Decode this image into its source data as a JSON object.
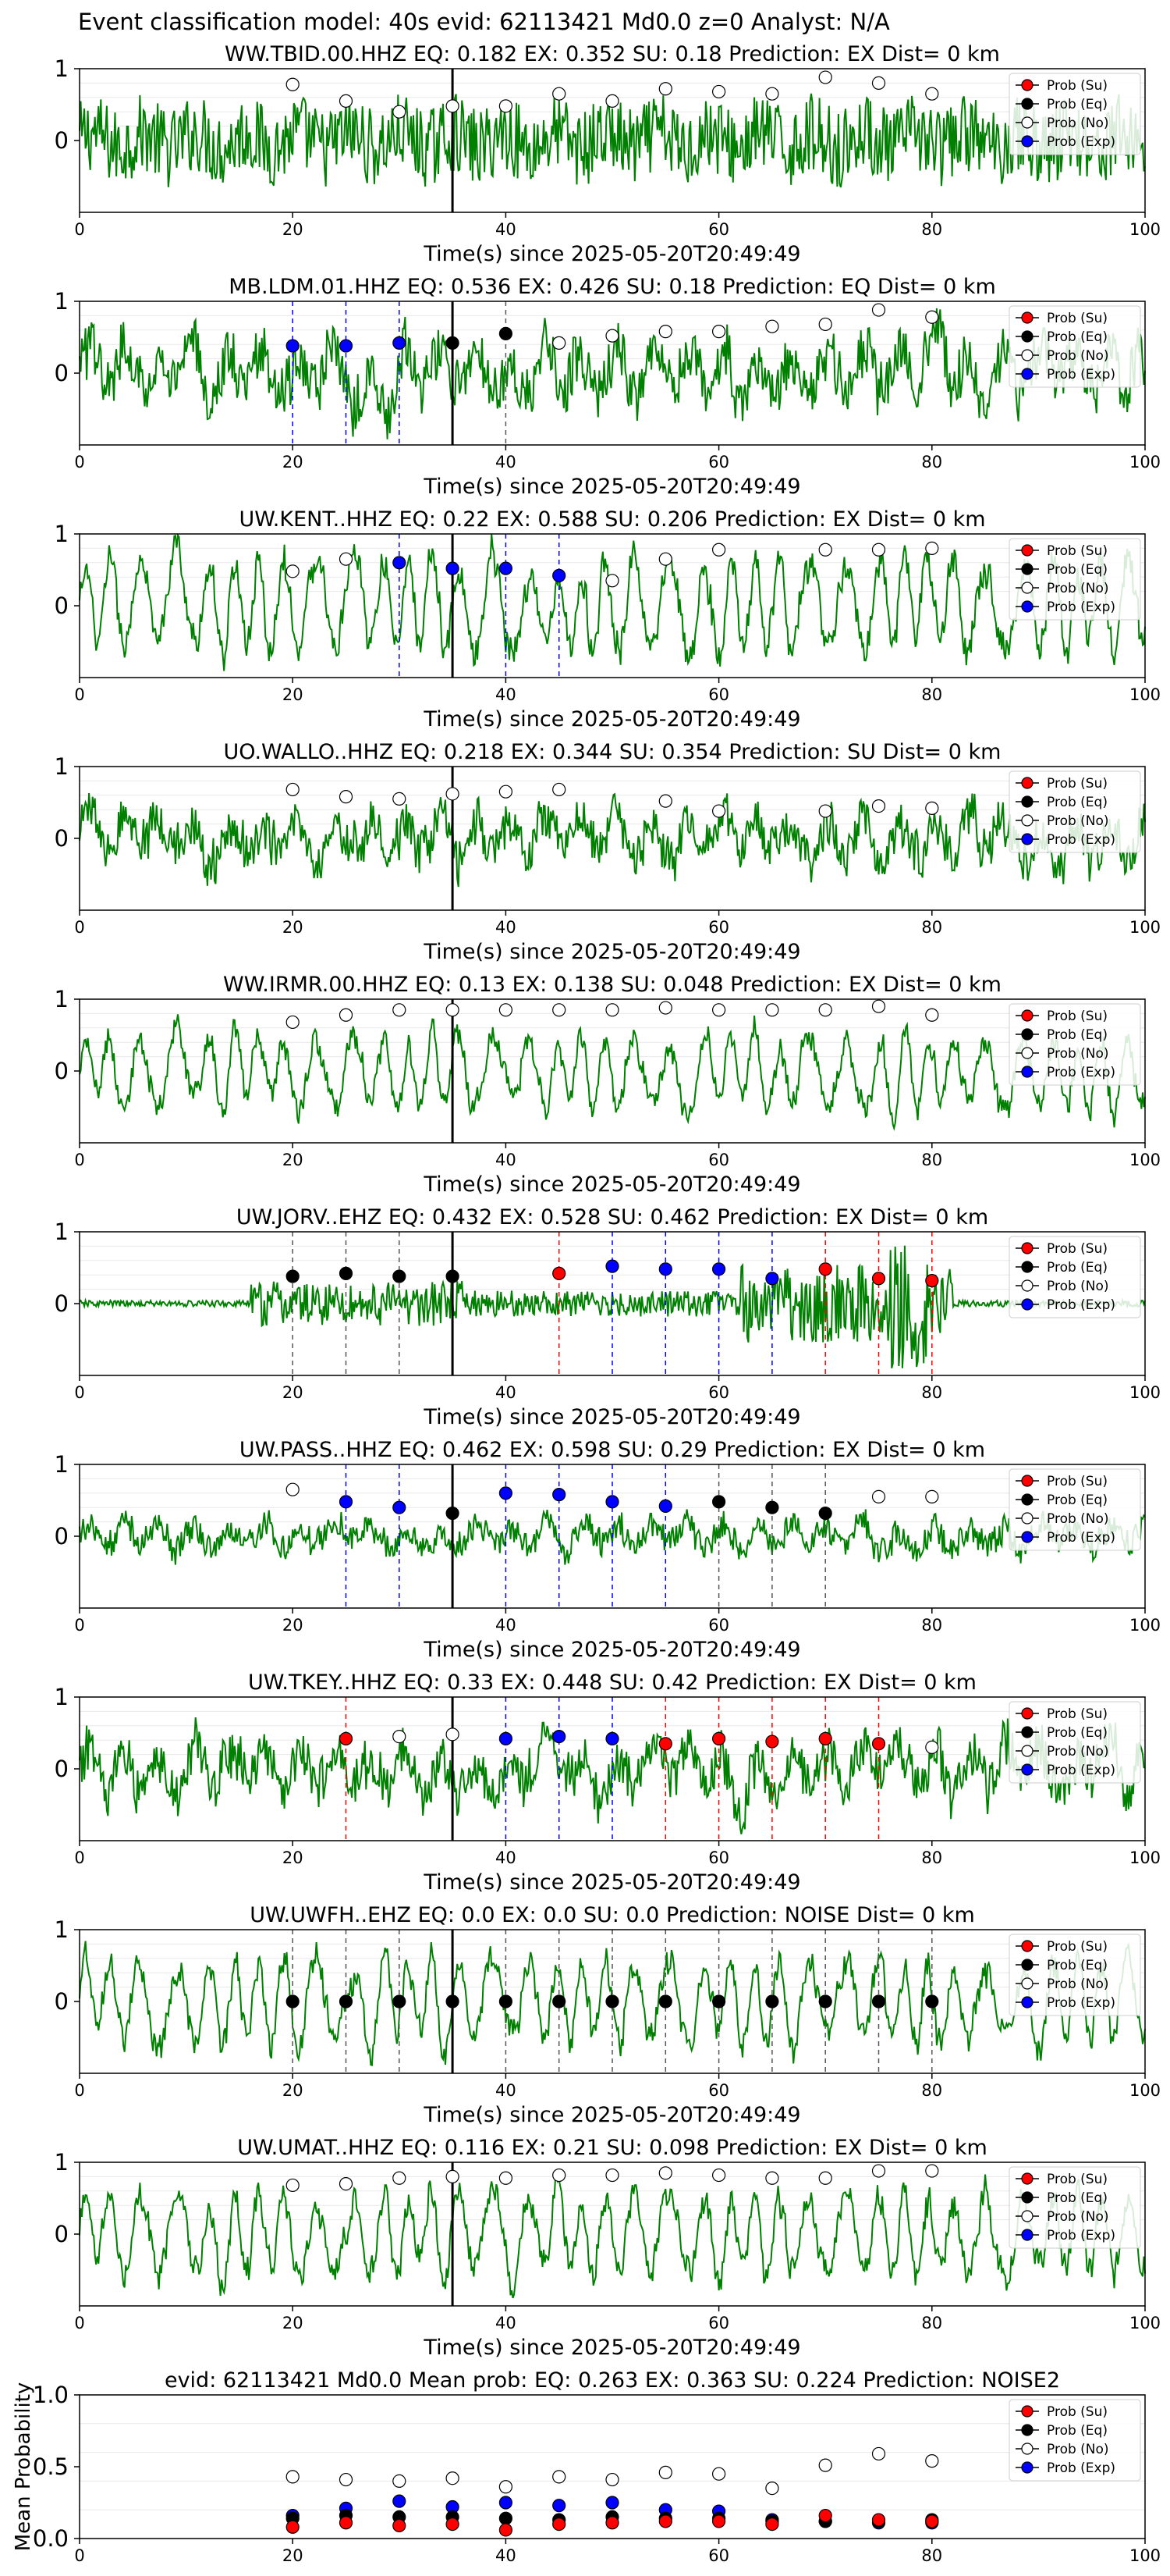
{
  "figure_title": "Event classification model: 40s evid: 62113421 Md0.0 z=0 Analyst: N/A",
  "legend": [
    "Prob (Su)",
    "Prob (Eq)",
    "Prob (No)",
    "Prob (Exp)"
  ],
  "colors": {
    "trace": "#008000",
    "su": "#ff0000",
    "eq": "#000000",
    "no": "#ffffff",
    "exp": "#0000ff",
    "pick": "#000000"
  },
  "chart_data": [
    {
      "type": "line",
      "title": "WW.TBID.00.HHZ   EQ: 0.182  EX: 0.352  SU: 0.18   Prediction: EX    Dist= 0 km",
      "xlabel": "Time(s) since 2025-05-20T20:49:49",
      "xlim": [
        0,
        100
      ],
      "ylim": [
        -1,
        1
      ],
      "xticks": [
        "0",
        "20",
        "40",
        "60",
        "80",
        "100"
      ],
      "yticks": [
        "1",
        "0"
      ],
      "pick_time": 35,
      "trace": {
        "amp": 0.55,
        "style": "noise"
      },
      "points": [
        {
          "t": 20,
          "p": 0.78,
          "c": "no"
        },
        {
          "t": 25,
          "p": 0.55,
          "c": "no"
        },
        {
          "t": 30,
          "p": 0.4,
          "c": "no"
        },
        {
          "t": 35,
          "p": 0.48,
          "c": "no"
        },
        {
          "t": 40,
          "p": 0.48,
          "c": "no"
        },
        {
          "t": 45,
          "p": 0.65,
          "c": "no"
        },
        {
          "t": 50,
          "p": 0.55,
          "c": "no"
        },
        {
          "t": 55,
          "p": 0.72,
          "c": "no"
        },
        {
          "t": 60,
          "p": 0.68,
          "c": "no"
        },
        {
          "t": 65,
          "p": 0.65,
          "c": "no"
        },
        {
          "t": 70,
          "p": 0.88,
          "c": "no"
        },
        {
          "t": 75,
          "p": 0.8,
          "c": "no"
        },
        {
          "t": 80,
          "p": 0.65,
          "c": "no"
        }
      ]
    },
    {
      "type": "line",
      "title": "MB.LDM.01.HHZ   EQ: 0.536  EX: 0.426  SU: 0.18   Prediction: EQ    Dist= 0 km",
      "xlabel": "Time(s) since 2025-05-20T20:49:49",
      "xlim": [
        0,
        100
      ],
      "ylim": [
        -1,
        1
      ],
      "xticks": [
        "0",
        "20",
        "40",
        "60",
        "80",
        "100"
      ],
      "yticks": [
        "1",
        "0"
      ],
      "pick_time": 35,
      "trace": {
        "amp": 0.6,
        "style": "mixed"
      },
      "points": [
        {
          "t": 20,
          "p": 0.38,
          "c": "exp"
        },
        {
          "t": 25,
          "p": 0.38,
          "c": "exp"
        },
        {
          "t": 30,
          "p": 0.42,
          "c": "exp"
        },
        {
          "t": 35,
          "p": 0.42,
          "c": "eq"
        },
        {
          "t": 40,
          "p": 0.55,
          "c": "eq"
        },
        {
          "t": 45,
          "p": 0.42,
          "c": "no"
        },
        {
          "t": 50,
          "p": 0.52,
          "c": "no"
        },
        {
          "t": 55,
          "p": 0.58,
          "c": "no"
        },
        {
          "t": 60,
          "p": 0.58,
          "c": "no"
        },
        {
          "t": 65,
          "p": 0.65,
          "c": "no"
        },
        {
          "t": 70,
          "p": 0.68,
          "c": "no"
        },
        {
          "t": 75,
          "p": 0.88,
          "c": "no"
        },
        {
          "t": 80,
          "p": 0.78,
          "c": "no"
        }
      ]
    },
    {
      "type": "line",
      "title": "UW.KENT..HHZ   EQ: 0.22  EX: 0.588  SU: 0.206   Prediction: EX    Dist= 0 km",
      "xlabel": "Time(s) since 2025-05-20T20:49:49",
      "xlim": [
        0,
        100
      ],
      "ylim": [
        -1,
        1
      ],
      "xticks": [
        "0",
        "20",
        "40",
        "60",
        "80",
        "100"
      ],
      "yticks": [
        "1",
        "0"
      ],
      "pick_time": 35,
      "trace": {
        "amp": 0.75,
        "style": "oscillation"
      },
      "points": [
        {
          "t": 20,
          "p": 0.48,
          "c": "no"
        },
        {
          "t": 25,
          "p": 0.65,
          "c": "no"
        },
        {
          "t": 30,
          "p": 0.6,
          "c": "exp"
        },
        {
          "t": 35,
          "p": 0.52,
          "c": "exp"
        },
        {
          "t": 40,
          "p": 0.52,
          "c": "exp"
        },
        {
          "t": 45,
          "p": 0.42,
          "c": "exp"
        },
        {
          "t": 50,
          "p": 0.35,
          "c": "no"
        },
        {
          "t": 55,
          "p": 0.65,
          "c": "no"
        },
        {
          "t": 60,
          "p": 0.78,
          "c": "no"
        },
        {
          "t": 70,
          "p": 0.78,
          "c": "no"
        },
        {
          "t": 75,
          "p": 0.78,
          "c": "no"
        },
        {
          "t": 80,
          "p": 0.8,
          "c": "no"
        }
      ]
    },
    {
      "type": "line",
      "title": "UO.WALLO..HHZ   EQ: 0.218  EX: 0.344  SU: 0.354   Prediction: SU    Dist= 0 km",
      "xlabel": "Time(s) since 2025-05-20T20:49:49",
      "xlim": [
        0,
        100
      ],
      "ylim": [
        -1,
        1
      ],
      "xticks": [
        "0",
        "20",
        "40",
        "60",
        "80",
        "100"
      ],
      "yticks": [
        "1",
        "0"
      ],
      "pick_time": 35,
      "trace": {
        "amp": 0.5,
        "style": "mixed"
      },
      "points": [
        {
          "t": 20,
          "p": 0.68,
          "c": "no"
        },
        {
          "t": 25,
          "p": 0.58,
          "c": "no"
        },
        {
          "t": 30,
          "p": 0.55,
          "c": "no"
        },
        {
          "t": 35,
          "p": 0.62,
          "c": "no"
        },
        {
          "t": 40,
          "p": 0.65,
          "c": "no"
        },
        {
          "t": 45,
          "p": 0.68,
          "c": "no"
        },
        {
          "t": 55,
          "p": 0.52,
          "c": "no"
        },
        {
          "t": 60,
          "p": 0.38,
          "c": "no"
        },
        {
          "t": 70,
          "p": 0.38,
          "c": "no"
        },
        {
          "t": 75,
          "p": 0.45,
          "c": "no"
        },
        {
          "t": 80,
          "p": 0.42,
          "c": "no"
        }
      ]
    },
    {
      "type": "line",
      "title": "WW.IRMR.00.HHZ   EQ: 0.13  EX: 0.138  SU: 0.048   Prediction: EX    Dist= 0 km",
      "xlabel": "Time(s) since 2025-05-20T20:49:49",
      "xlim": [
        0,
        100
      ],
      "ylim": [
        -1,
        1
      ],
      "xticks": [
        "0",
        "20",
        "40",
        "60",
        "80",
        "100"
      ],
      "yticks": [
        "1",
        "0"
      ],
      "pick_time": 35,
      "trace": {
        "amp": 0.6,
        "style": "oscillation"
      },
      "points": [
        {
          "t": 20,
          "p": 0.68,
          "c": "no"
        },
        {
          "t": 25,
          "p": 0.78,
          "c": "no"
        },
        {
          "t": 30,
          "p": 0.85,
          "c": "no"
        },
        {
          "t": 35,
          "p": 0.85,
          "c": "no"
        },
        {
          "t": 40,
          "p": 0.85,
          "c": "no"
        },
        {
          "t": 45,
          "p": 0.85,
          "c": "no"
        },
        {
          "t": 50,
          "p": 0.85,
          "c": "no"
        },
        {
          "t": 55,
          "p": 0.88,
          "c": "no"
        },
        {
          "t": 60,
          "p": 0.85,
          "c": "no"
        },
        {
          "t": 65,
          "p": 0.85,
          "c": "no"
        },
        {
          "t": 70,
          "p": 0.85,
          "c": "no"
        },
        {
          "t": 75,
          "p": 0.9,
          "c": "no"
        },
        {
          "t": 80,
          "p": 0.78,
          "c": "no"
        }
      ]
    },
    {
      "type": "line",
      "title": "UW.JORV..EHZ   EQ: 0.432  EX: 0.528  SU: 0.462   Prediction: EX    Dist= 0 km",
      "xlabel": "Time(s) since 2025-05-20T20:49:49",
      "xlim": [
        0,
        100
      ],
      "ylim": [
        -1,
        1
      ],
      "xticks": [
        "0",
        "20",
        "40",
        "60",
        "80",
        "100"
      ],
      "yticks": [
        "1",
        "0"
      ],
      "pick_time": 35,
      "trace": {
        "amp": 0.3,
        "style": "burst"
      },
      "points": [
        {
          "t": 20,
          "p": 0.38,
          "c": "eq"
        },
        {
          "t": 25,
          "p": 0.42,
          "c": "eq"
        },
        {
          "t": 30,
          "p": 0.38,
          "c": "eq"
        },
        {
          "t": 35,
          "p": 0.38,
          "c": "eq"
        },
        {
          "t": 45,
          "p": 0.42,
          "c": "su"
        },
        {
          "t": 50,
          "p": 0.52,
          "c": "exp"
        },
        {
          "t": 55,
          "p": 0.48,
          "c": "exp"
        },
        {
          "t": 60,
          "p": 0.48,
          "c": "exp"
        },
        {
          "t": 65,
          "p": 0.35,
          "c": "exp"
        },
        {
          "t": 70,
          "p": 0.48,
          "c": "su"
        },
        {
          "t": 75,
          "p": 0.35,
          "c": "su"
        },
        {
          "t": 80,
          "p": 0.32,
          "c": "su"
        }
      ]
    },
    {
      "type": "line",
      "title": "UW.PASS..HHZ   EQ: 0.462  EX: 0.598  SU: 0.29   Prediction: EX    Dist= 0 km",
      "xlabel": "Time(s) since 2025-05-20T20:49:49",
      "xlim": [
        0,
        100
      ],
      "ylim": [
        -1,
        1
      ],
      "xticks": [
        "0",
        "20",
        "40",
        "60",
        "80",
        "100"
      ],
      "yticks": [
        "1",
        "0"
      ],
      "pick_time": 35,
      "trace": {
        "amp": 0.3,
        "style": "mixed"
      },
      "points": [
        {
          "t": 20,
          "p": 0.65,
          "c": "no"
        },
        {
          "t": 25,
          "p": 0.48,
          "c": "exp"
        },
        {
          "t": 30,
          "p": 0.4,
          "c": "exp"
        },
        {
          "t": 35,
          "p": 0.32,
          "c": "eq"
        },
        {
          "t": 40,
          "p": 0.6,
          "c": "exp"
        },
        {
          "t": 45,
          "p": 0.58,
          "c": "exp"
        },
        {
          "t": 50,
          "p": 0.48,
          "c": "exp"
        },
        {
          "t": 55,
          "p": 0.42,
          "c": "exp"
        },
        {
          "t": 60,
          "p": 0.48,
          "c": "eq"
        },
        {
          "t": 65,
          "p": 0.4,
          "c": "eq"
        },
        {
          "t": 70,
          "p": 0.32,
          "c": "eq"
        },
        {
          "t": 75,
          "p": 0.55,
          "c": "no"
        },
        {
          "t": 80,
          "p": 0.55,
          "c": "no"
        }
      ]
    },
    {
      "type": "line",
      "title": "UW.TKEY..HHZ   EQ: 0.33  EX: 0.448  SU: 0.42   Prediction: EX    Dist= 0 km",
      "xlabel": "Time(s) since 2025-05-20T20:49:49",
      "xlim": [
        0,
        100
      ],
      "ylim": [
        -1,
        1
      ],
      "xticks": [
        "0",
        "20",
        "40",
        "60",
        "80",
        "100"
      ],
      "yticks": [
        "1",
        "0"
      ],
      "pick_time": 35,
      "trace": {
        "amp": 0.55,
        "style": "mixed"
      },
      "points": [
        {
          "t": 25,
          "p": 0.42,
          "c": "su"
        },
        {
          "t": 30,
          "p": 0.45,
          "c": "no"
        },
        {
          "t": 35,
          "p": 0.48,
          "c": "no"
        },
        {
          "t": 40,
          "p": 0.42,
          "c": "exp"
        },
        {
          "t": 45,
          "p": 0.45,
          "c": "exp"
        },
        {
          "t": 50,
          "p": 0.42,
          "c": "exp"
        },
        {
          "t": 55,
          "p": 0.35,
          "c": "su"
        },
        {
          "t": 60,
          "p": 0.42,
          "c": "su"
        },
        {
          "t": 65,
          "p": 0.38,
          "c": "su"
        },
        {
          "t": 70,
          "p": 0.42,
          "c": "su"
        },
        {
          "t": 75,
          "p": 0.35,
          "c": "su"
        },
        {
          "t": 80,
          "p": 0.3,
          "c": "no"
        }
      ]
    },
    {
      "type": "line",
      "title": "UW.UWFH..EHZ   EQ: 0.0  EX: 0.0  SU: 0.0   Prediction: NOISE    Dist= 0 km",
      "xlabel": "Time(s) since 2025-05-20T20:49:49",
      "xlim": [
        0,
        100
      ],
      "ylim": [
        -1,
        1
      ],
      "xticks": [
        "0",
        "20",
        "40",
        "60",
        "80",
        "100"
      ],
      "yticks": [
        "1",
        "0"
      ],
      "pick_time": 35,
      "trace": {
        "amp": 0.65,
        "style": "oscillation"
      },
      "points": [
        {
          "t": 20,
          "p": 0.0,
          "c": "eq"
        },
        {
          "t": 25,
          "p": 0.0,
          "c": "eq"
        },
        {
          "t": 30,
          "p": 0.0,
          "c": "eq"
        },
        {
          "t": 35,
          "p": 0.0,
          "c": "eq"
        },
        {
          "t": 40,
          "p": 0.0,
          "c": "eq"
        },
        {
          "t": 45,
          "p": 0.0,
          "c": "eq"
        },
        {
          "t": 50,
          "p": 0.0,
          "c": "eq"
        },
        {
          "t": 55,
          "p": 0.0,
          "c": "eq"
        },
        {
          "t": 60,
          "p": 0.0,
          "c": "eq"
        },
        {
          "t": 65,
          "p": 0.0,
          "c": "eq"
        },
        {
          "t": 70,
          "p": 0.0,
          "c": "eq"
        },
        {
          "t": 75,
          "p": 0.0,
          "c": "eq"
        },
        {
          "t": 80,
          "p": 0.0,
          "c": "eq"
        }
      ]
    },
    {
      "type": "line",
      "title": "UW.UMAT..HHZ   EQ: 0.116  EX: 0.21  SU: 0.098   Prediction: EX    Dist= 0 km",
      "xlabel": "Time(s) since 2025-05-20T20:49:49",
      "xlim": [
        0,
        100
      ],
      "ylim": [
        -1,
        1
      ],
      "xticks": [
        "0",
        "20",
        "40",
        "60",
        "80",
        "100"
      ],
      "yticks": [
        "1",
        "0"
      ],
      "pick_time": 35,
      "trace": {
        "amp": 0.65,
        "style": "oscillation"
      },
      "points": [
        {
          "t": 20,
          "p": 0.68,
          "c": "no"
        },
        {
          "t": 25,
          "p": 0.7,
          "c": "no"
        },
        {
          "t": 30,
          "p": 0.78,
          "c": "no"
        },
        {
          "t": 35,
          "p": 0.8,
          "c": "no"
        },
        {
          "t": 40,
          "p": 0.78,
          "c": "no"
        },
        {
          "t": 45,
          "p": 0.82,
          "c": "no"
        },
        {
          "t": 50,
          "p": 0.82,
          "c": "no"
        },
        {
          "t": 55,
          "p": 0.85,
          "c": "no"
        },
        {
          "t": 60,
          "p": 0.82,
          "c": "no"
        },
        {
          "t": 65,
          "p": 0.78,
          "c": "no"
        },
        {
          "t": 70,
          "p": 0.78,
          "c": "no"
        },
        {
          "t": 75,
          "p": 0.88,
          "c": "no"
        },
        {
          "t": 80,
          "p": 0.88,
          "c": "no"
        }
      ]
    },
    {
      "type": "scatter",
      "title": "evid: 62113421  Md0.0   Mean prob:   EQ: 0.263  EX: 0.363  SU: 0.224   Prediction: NOISE2",
      "ylabel": "Mean Probability",
      "xlim": [
        0,
        100
      ],
      "ylim": [
        0,
        1
      ],
      "xticks": [
        "0",
        "20",
        "40",
        "60",
        "80",
        "100"
      ],
      "yticks": [
        "1.0",
        "0.5",
        "0.0"
      ],
      "series": [
        {
          "c": "no",
          "x": [
            20,
            25,
            30,
            35,
            40,
            45,
            50,
            55,
            60,
            65,
            70,
            75,
            80
          ],
          "y": [
            0.43,
            0.41,
            0.4,
            0.42,
            0.36,
            0.43,
            0.41,
            0.46,
            0.45,
            0.35,
            0.51,
            0.59,
            0.54
          ]
        },
        {
          "c": "exp",
          "x": [
            20,
            25,
            30,
            35,
            40,
            45,
            50,
            55,
            60,
            65,
            70,
            75,
            80
          ],
          "y": [
            0.16,
            0.21,
            0.26,
            0.22,
            0.25,
            0.23,
            0.25,
            0.2,
            0.19,
            0.13,
            0.12,
            0.11,
            0.11
          ]
        },
        {
          "c": "eq",
          "x": [
            20,
            25,
            30,
            35,
            40,
            45,
            50,
            55,
            60,
            65,
            70,
            75,
            80
          ],
          "y": [
            0.14,
            0.16,
            0.15,
            0.15,
            0.14,
            0.13,
            0.15,
            0.14,
            0.14,
            0.12,
            0.12,
            0.12,
            0.13
          ]
        },
        {
          "c": "su",
          "x": [
            20,
            25,
            30,
            35,
            40,
            45,
            50,
            55,
            60,
            65,
            70,
            75,
            80
          ],
          "y": [
            0.08,
            0.11,
            0.09,
            0.1,
            0.06,
            0.1,
            0.11,
            0.12,
            0.12,
            0.1,
            0.16,
            0.13,
            0.12
          ]
        }
      ]
    }
  ]
}
